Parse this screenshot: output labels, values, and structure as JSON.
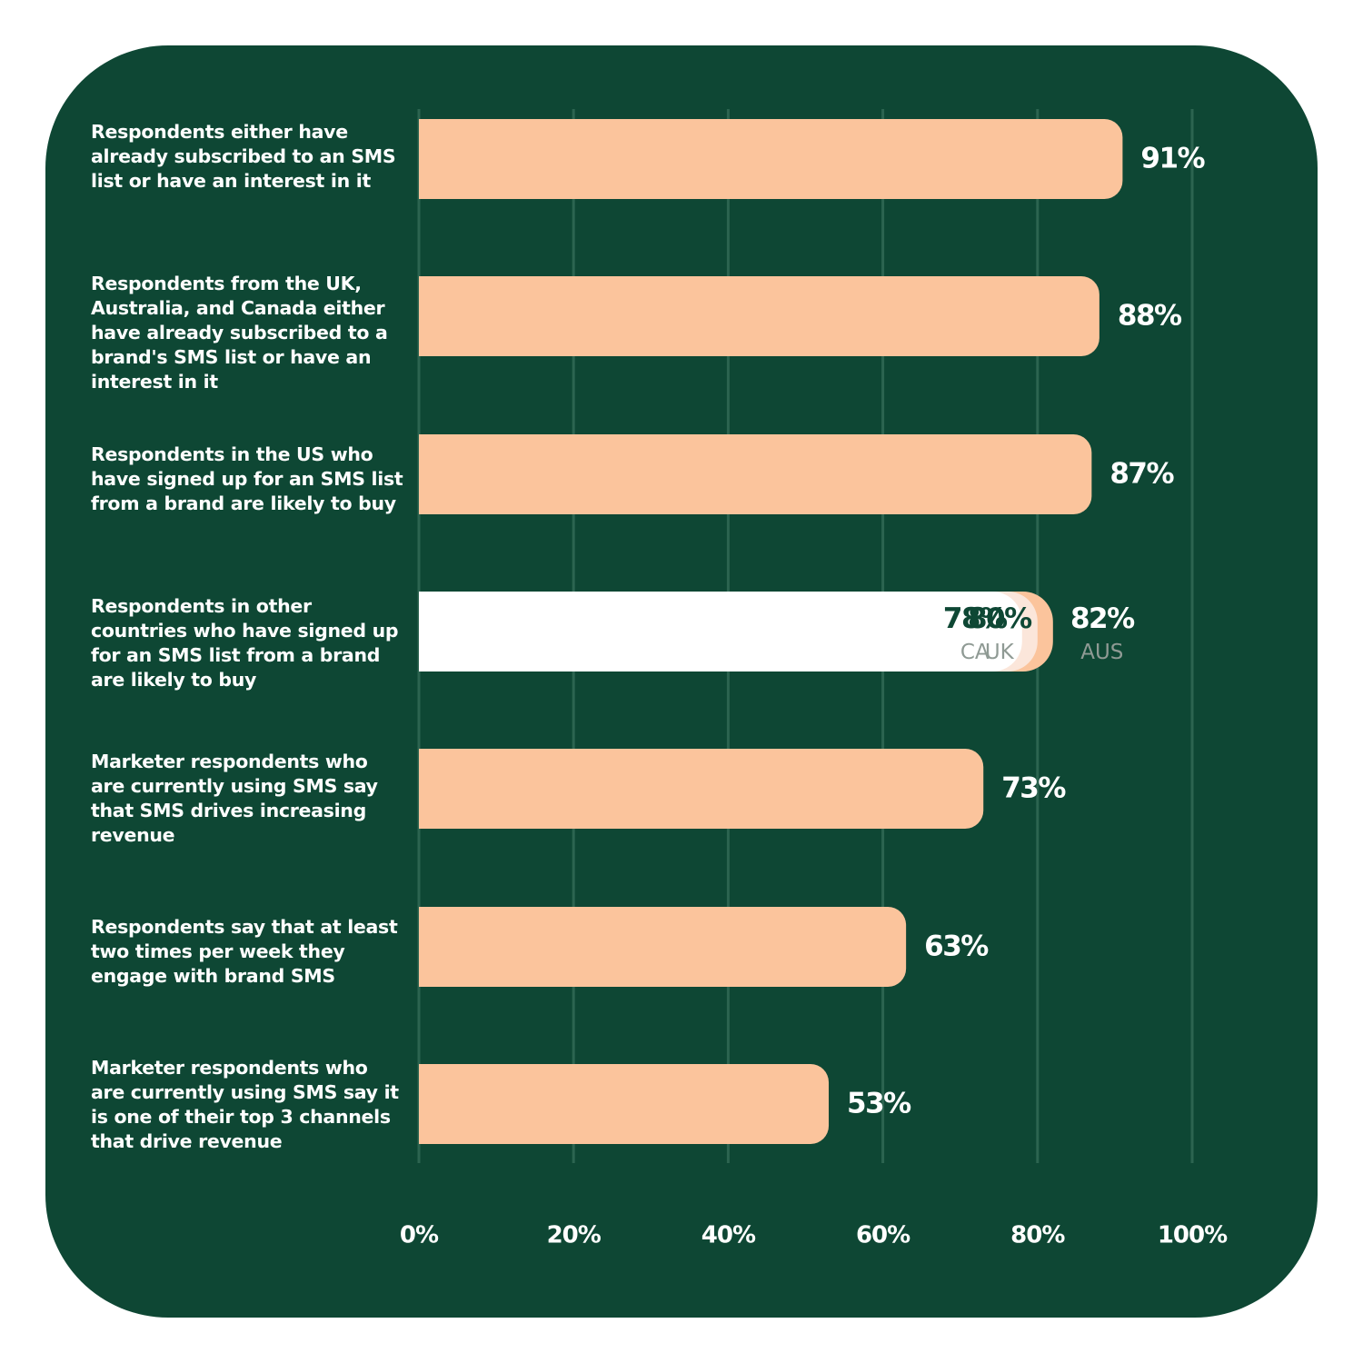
{
  "colors": {
    "background": "#0e4734",
    "bar": "#fbc49c",
    "ca": "#ffffff",
    "uk": "#fbe6da",
    "grid": "#2c6450",
    "value_text": "#ffffff",
    "inner_value_text": "#0e4734",
    "sub_label_text": "#8f9a94"
  },
  "chart_data": {
    "type": "bar",
    "orientation": "horizontal",
    "xlim": [
      0,
      100
    ],
    "x_ticks": [
      "0%",
      "20%",
      "40%",
      "60%",
      "80%",
      "100%"
    ],
    "grid": true,
    "categories": [
      "Respondents either have already subscribed to an SMS list or have an interest in it",
      "Respondents from the UK, Australia, and Canada either have already subscribed to a brand's SMS list or have an interest in it",
      "Respondents in the US who have signed up for an SMS list from a brand are likely to buy",
      "Respondents in other countries who have signed up for an SMS list from a brand are likely to buy",
      "Marketer respondents who are currently using SMS say that SMS drives increasing revenue",
      "Respondents say that at least two times per week they engage with brand SMS",
      "Marketer respondents who are currently using SMS say it is one of their top 3 channels that drive revenue"
    ],
    "category_lines": [
      [
        "Respondents either have",
        "already subscribed to an SMS",
        "list or have an interest in it"
      ],
      [
        "Respondents from the UK,",
        "Australia, and Canada either",
        "have already subscribed to a",
        "brand's SMS list or have an",
        "interest in it"
      ],
      [
        "Respondents in the US who",
        "have signed up for an SMS list",
        "from a brand are likely to buy"
      ],
      [
        "Respondents in other",
        "countries who have signed up",
        "for an SMS list from a brand",
        "are likely to buy"
      ],
      [
        "Marketer respondents who",
        "are currently using SMS say",
        "that SMS drives increasing",
        "revenue"
      ],
      [
        "Respondents say that at least",
        "two times per week they",
        "engage with brand SMS"
      ],
      [
        "Marketer respondents who",
        "are currently using SMS say it",
        "is one of their top 3 channels",
        "that drive revenue"
      ]
    ],
    "values": [
      91,
      88,
      87,
      null,
      73,
      63,
      53
    ],
    "value_labels": [
      "91%",
      "88%",
      "87%",
      null,
      "73%",
      "63%",
      "53%"
    ],
    "split_bar": {
      "row": 3,
      "segments": [
        {
          "name": "CA",
          "value": 78,
          "label": "78%"
        },
        {
          "name": "UK",
          "value": 80,
          "label": "80%"
        },
        {
          "name": "AUS",
          "value": 82,
          "label": "82%"
        }
      ]
    }
  }
}
